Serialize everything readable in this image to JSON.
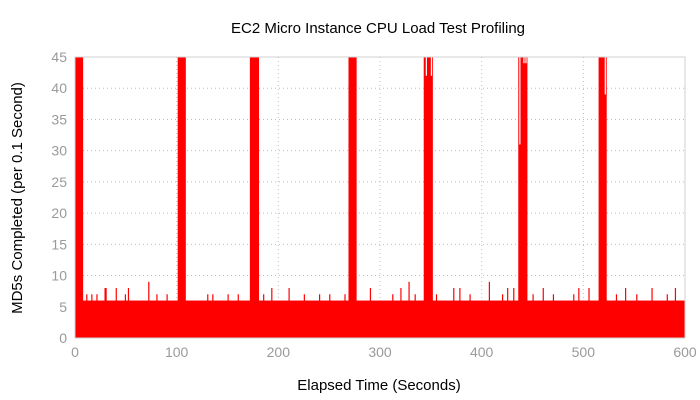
{
  "chart_data": {
    "type": "bar",
    "title": "EC2 Micro Instance CPU Load Test Profiling",
    "xlabel": "Elapsed Time (Seconds)",
    "ylabel": "MD5s Completed (per 0.1 Second)",
    "xlim": [
      0,
      600
    ],
    "ylim": [
      0,
      45
    ],
    "x_ticks": [
      0,
      100,
      200,
      300,
      400,
      500,
      600
    ],
    "y_ticks": [
      0,
      5,
      10,
      15,
      20,
      25,
      30,
      35,
      40,
      45
    ],
    "grid": true,
    "bar_color": "#ff0000",
    "baseline_value": 6,
    "bursts": [
      {
        "start": 0,
        "end": 8,
        "value": 45
      },
      {
        "start": 101,
        "end": 109,
        "value": 45
      },
      {
        "start": 172,
        "end": 181,
        "value": 45
      },
      {
        "start": 269,
        "end": 277,
        "value": 45
      },
      {
        "start": 343,
        "end": 352,
        "value": 45
      },
      {
        "start": 436,
        "end": 445,
        "value": 45
      },
      {
        "start": 515,
        "end": 523,
        "value": 45
      }
    ],
    "spikes": [
      {
        "x": 11,
        "value": 7
      },
      {
        "x": 16,
        "value": 7
      },
      {
        "x": 21,
        "value": 7
      },
      {
        "x": 29,
        "value": 8
      },
      {
        "x": 30,
        "value": 8
      },
      {
        "x": 40,
        "value": 8
      },
      {
        "x": 49,
        "value": 7
      },
      {
        "x": 52,
        "value": 8
      },
      {
        "x": 72,
        "value": 9
      },
      {
        "x": 80,
        "value": 7
      },
      {
        "x": 90,
        "value": 7
      },
      {
        "x": 130,
        "value": 7
      },
      {
        "x": 135,
        "value": 7
      },
      {
        "x": 150,
        "value": 7
      },
      {
        "x": 160,
        "value": 7
      },
      {
        "x": 185,
        "value": 7
      },
      {
        "x": 193,
        "value": 8
      },
      {
        "x": 210,
        "value": 8
      },
      {
        "x": 225,
        "value": 7
      },
      {
        "x": 240,
        "value": 7
      },
      {
        "x": 250,
        "value": 7
      },
      {
        "x": 265,
        "value": 7
      },
      {
        "x": 290,
        "value": 8
      },
      {
        "x": 312,
        "value": 7
      },
      {
        "x": 320,
        "value": 8
      },
      {
        "x": 328,
        "value": 9
      },
      {
        "x": 334,
        "value": 7
      },
      {
        "x": 355,
        "value": 7
      },
      {
        "x": 372,
        "value": 8
      },
      {
        "x": 378,
        "value": 8
      },
      {
        "x": 388,
        "value": 7
      },
      {
        "x": 407,
        "value": 9
      },
      {
        "x": 420,
        "value": 7
      },
      {
        "x": 425,
        "value": 8
      },
      {
        "x": 431,
        "value": 8
      },
      {
        "x": 450,
        "value": 7
      },
      {
        "x": 460,
        "value": 8
      },
      {
        "x": 470,
        "value": 7
      },
      {
        "x": 490,
        "value": 7
      },
      {
        "x": 495,
        "value": 8
      },
      {
        "x": 505,
        "value": 8
      },
      {
        "x": 532,
        "value": 7
      },
      {
        "x": 541,
        "value": 8
      },
      {
        "x": 552,
        "value": 7
      },
      {
        "x": 567,
        "value": 8
      },
      {
        "x": 582,
        "value": 7
      },
      {
        "x": 590,
        "value": 8
      }
    ],
    "dips": [
      {
        "x": 345,
        "value": 42
      },
      {
        "x": 350,
        "value": 42
      },
      {
        "x": 437,
        "value": 31
      },
      {
        "x": 441,
        "value": 44
      },
      {
        "x": 443,
        "value": 44
      },
      {
        "x": 521,
        "value": 39
      }
    ]
  }
}
